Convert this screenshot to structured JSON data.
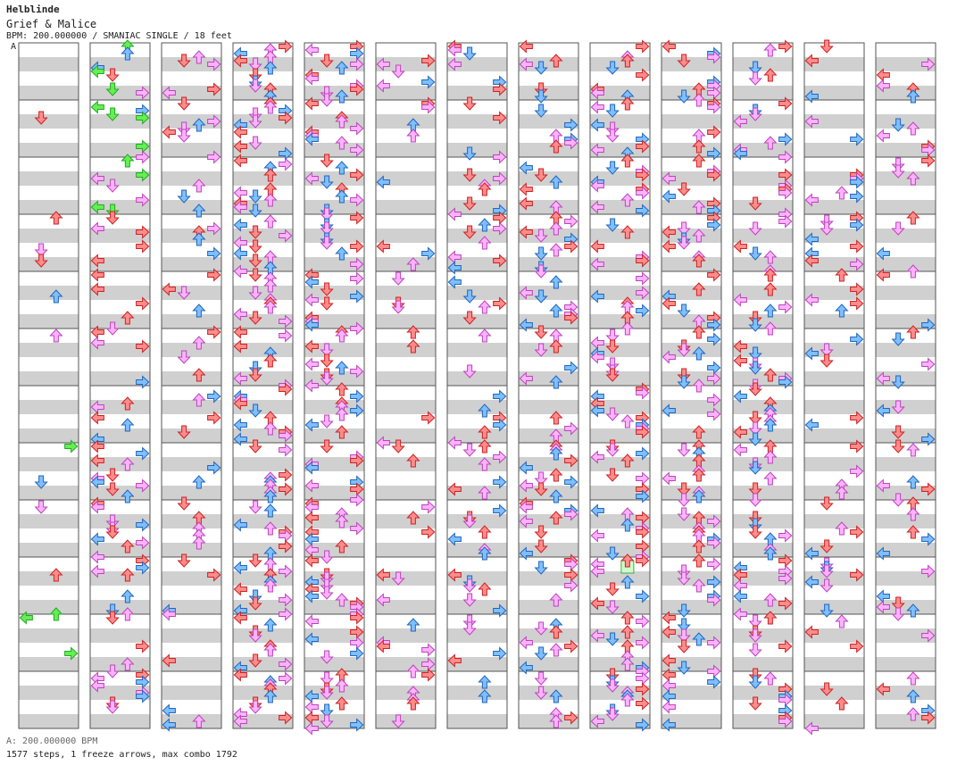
{
  "header": {
    "song_title": "Helblinde",
    "chart_name": "Grief & Malice",
    "meta": "BPM: 200.000000 / SMANIAC SINGLE / 18 feet"
  },
  "section_marker": "A",
  "footer": {
    "bpm_line": "A: 200.000000 BPM",
    "stats_line": "1577 steps, 1 freeze arrows, max combo 1792"
  },
  "chart": {
    "columns": 13,
    "measures_per_column": 12,
    "lanes": [
      "left",
      "down",
      "up",
      "right"
    ],
    "colors": {
      "quarter": "#ff8c8c",
      "quarter_stroke": "#cc2222",
      "eighth": "#7fbfff",
      "eighth_stroke": "#2266bb",
      "sixteenth": "#ffb3ff",
      "sixteenth_stroke": "#bb44bb",
      "twelfth": "#66ee55",
      "twelfth_stroke": "#22aa22",
      "freeze": "#ccffcc",
      "freeze_stroke": "#44aa44",
      "band_dark": "#d0d0d0",
      "band_light": "#ffffff",
      "border": "#555555"
    },
    "density": [
      0.12,
      0.55,
      0.35,
      0.85,
      0.85,
      0.3,
      0.45,
      0.55,
      0.8,
      0.75,
      0.7,
      0.3,
      0.35
    ],
    "freeze_arrows": [
      {
        "column": 8,
        "measure": 9,
        "lane": "up"
      }
    ]
  }
}
